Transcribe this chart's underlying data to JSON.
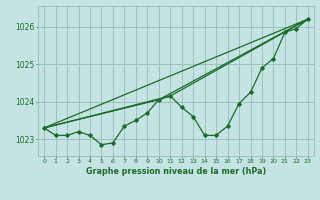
{
  "background_color": "#c5e3e3",
  "grid_color": "#9dbfbf",
  "line_color": "#1a6b2a",
  "title": "Graphe pression niveau de la mer (hPa)",
  "xlim": [
    -0.5,
    23.5
  ],
  "ylim": [
    1022.55,
    1026.55
  ],
  "yticks": [
    1023,
    1024,
    1025,
    1026
  ],
  "xticks": [
    0,
    1,
    2,
    3,
    4,
    5,
    6,
    7,
    8,
    9,
    10,
    11,
    12,
    13,
    14,
    15,
    16,
    17,
    18,
    19,
    20,
    21,
    22,
    23
  ],
  "series1": [
    1023.3,
    1023.1,
    1023.1,
    1023.2,
    1023.1,
    1022.85,
    1022.9,
    1023.35,
    1023.5,
    1023.7,
    1024.05,
    1024.15,
    1023.85,
    1023.6,
    1023.1,
    1023.1,
    1023.35,
    1023.95,
    1024.25,
    1024.9,
    1025.15,
    1025.85,
    1025.95,
    1026.2
  ],
  "series2_x": [
    0,
    23
  ],
  "series2_y": [
    1023.3,
    1026.2
  ],
  "series3_x": [
    0,
    10,
    23
  ],
  "series3_y": [
    1023.3,
    1024.05,
    1026.2
  ],
  "series4_x": [
    0,
    11,
    23
  ],
  "series4_y": [
    1023.3,
    1024.15,
    1026.2
  ]
}
